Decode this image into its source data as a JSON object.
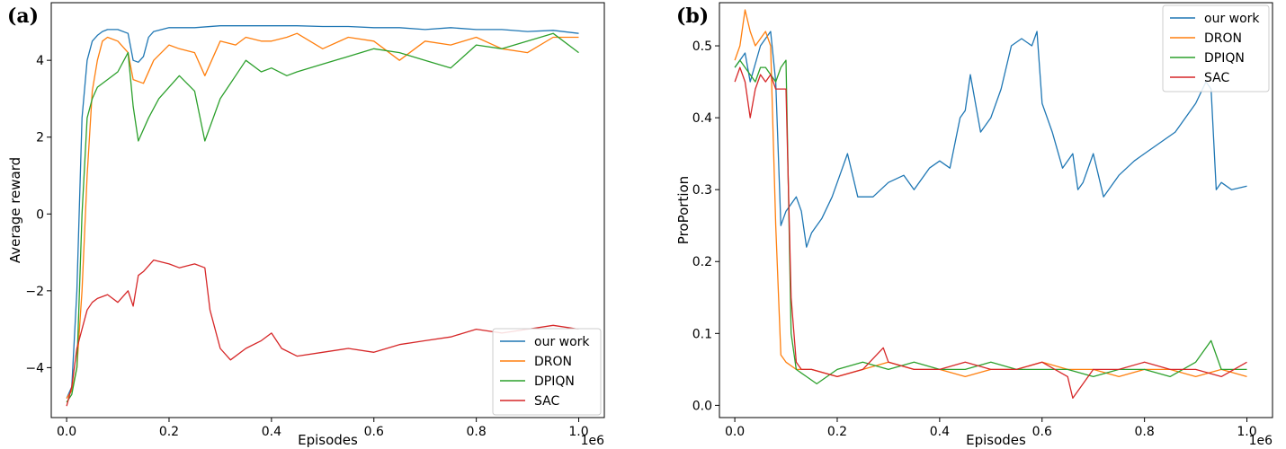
{
  "chart_data": [
    {
      "panel_label": "(a)",
      "type": "line",
      "xlabel": "Episodes",
      "ylabel": "Average reward",
      "x_offset_label": "1e6",
      "xlim": [
        -0.03,
        1.05
      ],
      "ylim": [
        -5.3,
        5.5
      ],
      "xticks": [
        0.0,
        0.2,
        0.4,
        0.6,
        0.8,
        1.0
      ],
      "xtick_labels": [
        "0.0",
        "0.2",
        "0.4",
        "0.6",
        "0.8",
        "1.0"
      ],
      "yticks": [
        -4,
        -2,
        0,
        2,
        4
      ],
      "ytick_labels": [
        "−4",
        "−2",
        "0",
        "2",
        "4"
      ],
      "grid": false,
      "legend_position": "lower-right",
      "series": [
        {
          "name": "our work",
          "color": "#1f77b4",
          "x": [
            0.0,
            0.01,
            0.02,
            0.03,
            0.04,
            0.05,
            0.06,
            0.07,
            0.08,
            0.1,
            0.12,
            0.13,
            0.14,
            0.15,
            0.16,
            0.17,
            0.2,
            0.25,
            0.3,
            0.35,
            0.4,
            0.45,
            0.5,
            0.55,
            0.6,
            0.65,
            0.7,
            0.75,
            0.8,
            0.85,
            0.9,
            0.95,
            1.0
          ],
          "y": [
            -4.8,
            -4.5,
            -2.0,
            2.5,
            4.0,
            4.5,
            4.65,
            4.75,
            4.8,
            4.8,
            4.7,
            4.0,
            3.95,
            4.1,
            4.6,
            4.75,
            4.85,
            4.85,
            4.9,
            4.9,
            4.9,
            4.9,
            4.88,
            4.88,
            4.85,
            4.85,
            4.8,
            4.85,
            4.8,
            4.8,
            4.75,
            4.78,
            4.7
          ]
        },
        {
          "name": "DRON",
          "color": "#ff7f0e",
          "x": [
            0.0,
            0.01,
            0.02,
            0.03,
            0.04,
            0.05,
            0.06,
            0.07,
            0.08,
            0.1,
            0.12,
            0.13,
            0.15,
            0.17,
            0.2,
            0.22,
            0.25,
            0.27,
            0.3,
            0.33,
            0.35,
            0.38,
            0.4,
            0.43,
            0.45,
            0.5,
            0.55,
            0.6,
            0.65,
            0.7,
            0.75,
            0.8,
            0.85,
            0.9,
            0.95,
            1.0
          ],
          "y": [
            -4.8,
            -4.6,
            -4.0,
            -2.0,
            1.0,
            3.2,
            4.0,
            4.5,
            4.6,
            4.5,
            4.2,
            3.5,
            3.4,
            4.0,
            4.4,
            4.3,
            4.2,
            3.6,
            4.5,
            4.4,
            4.6,
            4.5,
            4.5,
            4.6,
            4.7,
            4.3,
            4.6,
            4.5,
            4.0,
            4.5,
            4.4,
            4.6,
            4.3,
            4.2,
            4.6,
            4.6
          ]
        },
        {
          "name": "DPIQN",
          "color": "#2ca02c",
          "x": [
            0.0,
            0.01,
            0.02,
            0.03,
            0.04,
            0.05,
            0.06,
            0.08,
            0.1,
            0.12,
            0.13,
            0.14,
            0.16,
            0.18,
            0.2,
            0.22,
            0.25,
            0.27,
            0.3,
            0.33,
            0.35,
            0.38,
            0.4,
            0.43,
            0.45,
            0.5,
            0.55,
            0.6,
            0.65,
            0.7,
            0.75,
            0.8,
            0.85,
            0.9,
            0.95,
            1.0
          ],
          "y": [
            -4.9,
            -4.7,
            -4.0,
            0.0,
            2.5,
            3.0,
            3.3,
            3.5,
            3.7,
            4.2,
            2.8,
            1.9,
            2.5,
            3.0,
            3.3,
            3.6,
            3.2,
            1.9,
            3.0,
            3.6,
            4.0,
            3.7,
            3.8,
            3.6,
            3.7,
            3.9,
            4.1,
            4.3,
            4.2,
            4.0,
            3.8,
            4.4,
            4.3,
            4.5,
            4.7,
            4.2
          ]
        },
        {
          "name": "SAC",
          "color": "#d62728",
          "x": [
            0.0,
            0.01,
            0.02,
            0.03,
            0.04,
            0.05,
            0.06,
            0.08,
            0.1,
            0.12,
            0.13,
            0.14,
            0.15,
            0.17,
            0.2,
            0.22,
            0.25,
            0.27,
            0.28,
            0.3,
            0.32,
            0.35,
            0.38,
            0.4,
            0.42,
            0.45,
            0.5,
            0.55,
            0.6,
            0.65,
            0.7,
            0.75,
            0.8,
            0.85,
            0.9,
            0.95,
            1.0
          ],
          "y": [
            -5.0,
            -4.5,
            -3.5,
            -3.0,
            -2.5,
            -2.3,
            -2.2,
            -2.1,
            -2.3,
            -2.0,
            -2.4,
            -1.6,
            -1.5,
            -1.2,
            -1.3,
            -1.4,
            -1.3,
            -1.4,
            -2.5,
            -3.5,
            -3.8,
            -3.5,
            -3.3,
            -3.1,
            -3.5,
            -3.7,
            -3.6,
            -3.5,
            -3.6,
            -3.4,
            -3.3,
            -3.2,
            -3.0,
            -3.1,
            -3.0,
            -2.9,
            -3.0
          ]
        }
      ]
    },
    {
      "panel_label": "(b)",
      "type": "line",
      "xlabel": "Episodes",
      "ylabel": "ProPortion",
      "x_offset_label": "1e6",
      "xlim": [
        -0.03,
        1.05
      ],
      "ylim": [
        -0.017,
        0.56
      ],
      "xticks": [
        0.0,
        0.2,
        0.4,
        0.6,
        0.8,
        1.0
      ],
      "xtick_labels": [
        "0.0",
        "0.2",
        "0.4",
        "0.6",
        "0.8",
        "1.0"
      ],
      "yticks": [
        0.0,
        0.1,
        0.2,
        0.3,
        0.4,
        0.5
      ],
      "ytick_labels": [
        "0.0",
        "0.1",
        "0.2",
        "0.3",
        "0.4",
        "0.5"
      ],
      "grid": false,
      "legend_position": "upper-right",
      "series": [
        {
          "name": "our work",
          "color": "#1f77b4",
          "x": [
            0.0,
            0.01,
            0.02,
            0.03,
            0.05,
            0.07,
            0.08,
            0.09,
            0.1,
            0.11,
            0.12,
            0.13,
            0.14,
            0.15,
            0.17,
            0.19,
            0.21,
            0.22,
            0.24,
            0.27,
            0.3,
            0.33,
            0.35,
            0.38,
            0.4,
            0.42,
            0.44,
            0.45,
            0.46,
            0.48,
            0.5,
            0.52,
            0.54,
            0.56,
            0.58,
            0.59,
            0.6,
            0.62,
            0.64,
            0.66,
            0.67,
            0.68,
            0.7,
            0.72,
            0.75,
            0.78,
            0.8,
            0.82,
            0.84,
            0.86,
            0.88,
            0.9,
            0.92,
            0.93,
            0.94,
            0.95,
            0.97,
            1.0
          ],
          "y": [
            0.47,
            0.48,
            0.49,
            0.45,
            0.5,
            0.52,
            0.45,
            0.25,
            0.27,
            0.28,
            0.29,
            0.27,
            0.22,
            0.24,
            0.26,
            0.29,
            0.33,
            0.35,
            0.29,
            0.29,
            0.31,
            0.32,
            0.3,
            0.33,
            0.34,
            0.33,
            0.4,
            0.41,
            0.46,
            0.38,
            0.4,
            0.44,
            0.5,
            0.51,
            0.5,
            0.52,
            0.42,
            0.38,
            0.33,
            0.35,
            0.3,
            0.31,
            0.35,
            0.29,
            0.32,
            0.34,
            0.35,
            0.36,
            0.37,
            0.38,
            0.4,
            0.42,
            0.45,
            0.44,
            0.3,
            0.31,
            0.3,
            0.305
          ]
        },
        {
          "name": "DRON",
          "color": "#ff7f0e",
          "x": [
            0.0,
            0.01,
            0.02,
            0.03,
            0.04,
            0.05,
            0.06,
            0.07,
            0.08,
            0.09,
            0.1,
            0.12,
            0.15,
            0.2,
            0.25,
            0.3,
            0.35,
            0.4,
            0.45,
            0.5,
            0.55,
            0.6,
            0.65,
            0.7,
            0.75,
            0.8,
            0.85,
            0.9,
            0.95,
            1.0
          ],
          "y": [
            0.48,
            0.5,
            0.55,
            0.52,
            0.5,
            0.51,
            0.52,
            0.5,
            0.25,
            0.07,
            0.06,
            0.05,
            0.05,
            0.04,
            0.05,
            0.06,
            0.05,
            0.05,
            0.04,
            0.05,
            0.05,
            0.06,
            0.05,
            0.05,
            0.04,
            0.05,
            0.05,
            0.04,
            0.05,
            0.04
          ]
        },
        {
          "name": "DPIQN",
          "color": "#2ca02c",
          "x": [
            0.0,
            0.01,
            0.02,
            0.03,
            0.04,
            0.05,
            0.06,
            0.07,
            0.08,
            0.09,
            0.1,
            0.11,
            0.12,
            0.14,
            0.16,
            0.2,
            0.25,
            0.3,
            0.35,
            0.4,
            0.45,
            0.5,
            0.55,
            0.6,
            0.65,
            0.7,
            0.75,
            0.8,
            0.85,
            0.9,
            0.93,
            0.95,
            1.0
          ],
          "y": [
            0.47,
            0.48,
            0.47,
            0.46,
            0.45,
            0.47,
            0.47,
            0.46,
            0.45,
            0.47,
            0.48,
            0.1,
            0.05,
            0.04,
            0.03,
            0.05,
            0.06,
            0.05,
            0.06,
            0.05,
            0.05,
            0.06,
            0.05,
            0.05,
            0.05,
            0.04,
            0.05,
            0.05,
            0.04,
            0.06,
            0.09,
            0.05,
            0.05
          ]
        },
        {
          "name": "SAC",
          "color": "#d62728",
          "x": [
            0.0,
            0.01,
            0.02,
            0.03,
            0.04,
            0.05,
            0.06,
            0.07,
            0.08,
            0.09,
            0.1,
            0.11,
            0.12,
            0.13,
            0.15,
            0.2,
            0.25,
            0.29,
            0.3,
            0.35,
            0.4,
            0.45,
            0.5,
            0.55,
            0.6,
            0.65,
            0.66,
            0.7,
            0.75,
            0.8,
            0.85,
            0.9,
            0.95,
            1.0
          ],
          "y": [
            0.45,
            0.47,
            0.45,
            0.4,
            0.44,
            0.46,
            0.45,
            0.46,
            0.44,
            0.44,
            0.44,
            0.15,
            0.06,
            0.05,
            0.05,
            0.04,
            0.05,
            0.08,
            0.06,
            0.05,
            0.05,
            0.06,
            0.05,
            0.05,
            0.06,
            0.04,
            0.01,
            0.05,
            0.05,
            0.06,
            0.05,
            0.05,
            0.04,
            0.06
          ]
        }
      ]
    }
  ]
}
